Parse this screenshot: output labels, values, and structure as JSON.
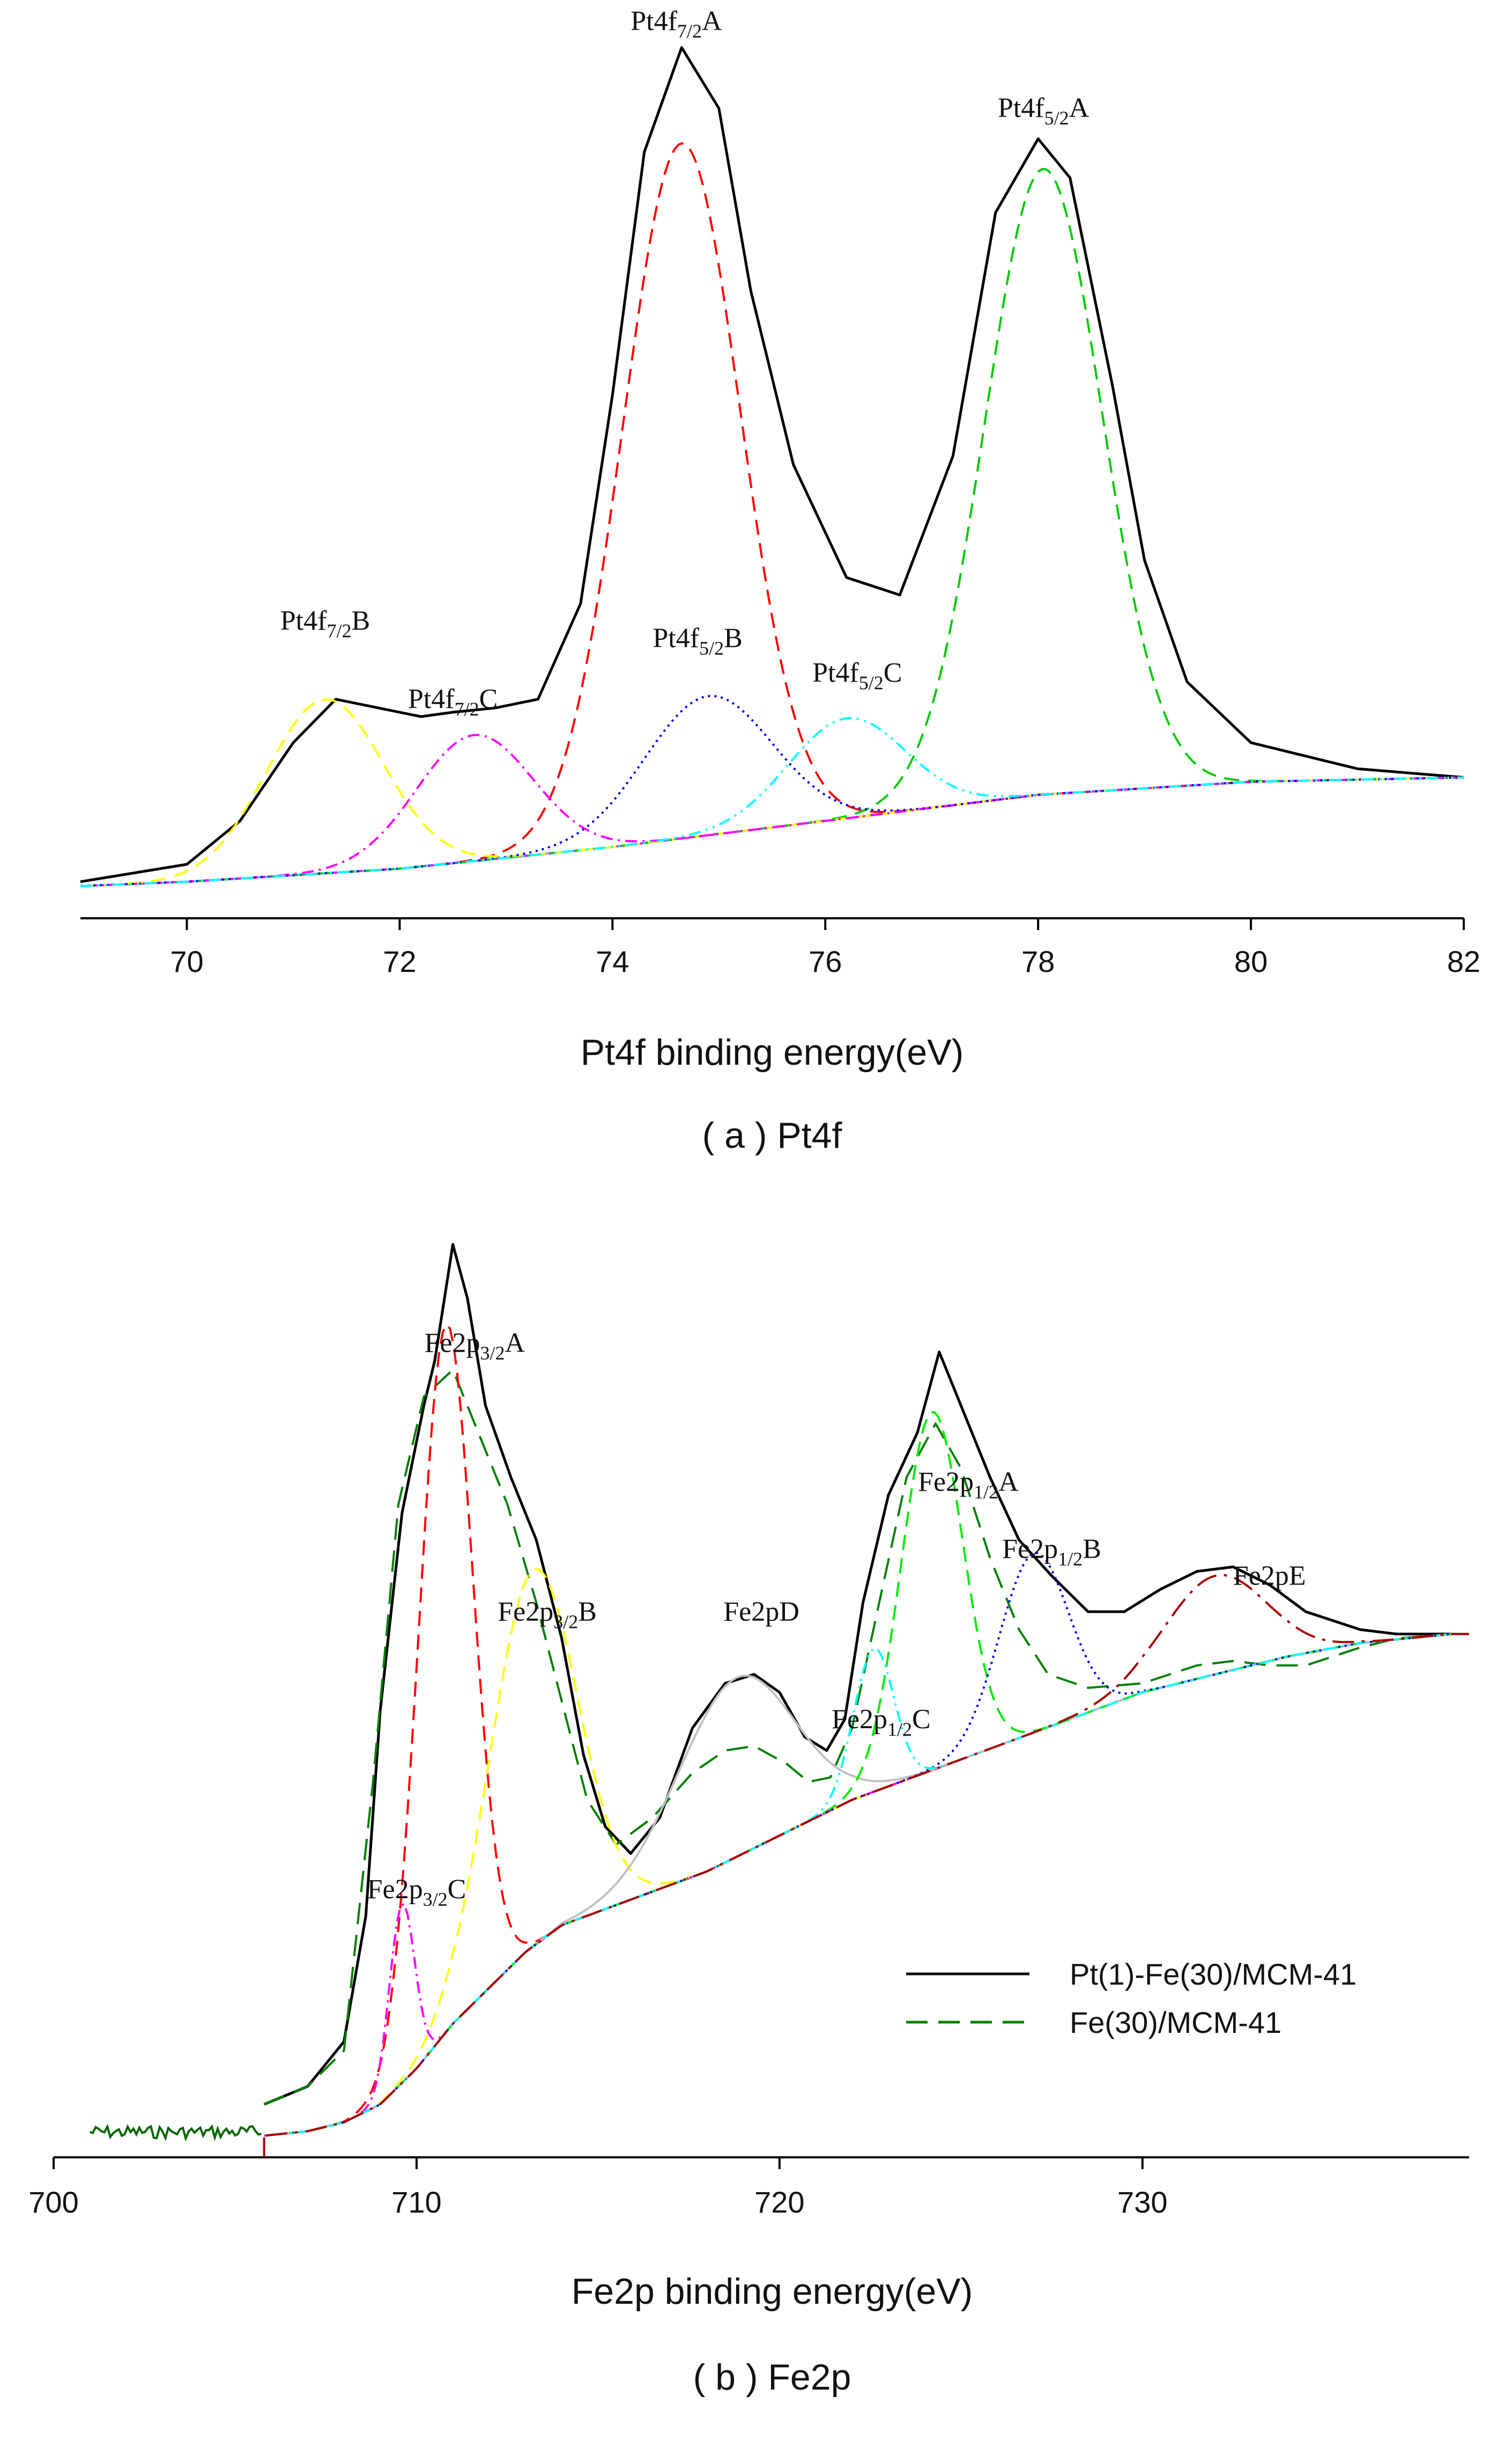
{
  "chart_data": [
    {
      "type": "line",
      "panel": "a",
      "caption": "( a ) Pt4f",
      "xlabel": "Pt4f binding energy(eV)",
      "ylabel": "",
      "xlim": [
        69,
        82
      ],
      "ylim": [
        0,
        100
      ],
      "xticks": [
        70,
        72,
        74,
        76,
        78,
        80,
        82
      ],
      "grid": false,
      "baseline": [
        [
          69,
          0.5
        ],
        [
          70,
          1
        ],
        [
          72,
          2.5
        ],
        [
          74,
          5
        ],
        [
          76,
          8
        ],
        [
          78,
          11
        ],
        [
          80,
          12.5
        ],
        [
          82,
          13
        ]
      ],
      "series": [
        {
          "name": "envelope",
          "color": "#000000",
          "dash": "",
          "points": [
            [
              69,
              1
            ],
            [
              70,
              3
            ],
            [
              70.5,
              8
            ],
            [
              71,
              17
            ],
            [
              71.4,
              22
            ],
            [
              71.8,
              21
            ],
            [
              72.2,
              20
            ],
            [
              72.5,
              20.5
            ],
            [
              72.9,
              21
            ],
            [
              73.3,
              22
            ],
            [
              73.7,
              33
            ],
            [
              74,
              57
            ],
            [
              74.3,
              85
            ],
            [
              74.65,
              97
            ],
            [
              75,
              90
            ],
            [
              75.3,
              69
            ],
            [
              75.7,
              49
            ],
            [
              76.2,
              36
            ],
            [
              76.7,
              34
            ],
            [
              77.2,
              50
            ],
            [
              77.6,
              78
            ],
            [
              78,
              86.5
            ],
            [
              78.3,
              82
            ],
            [
              78.7,
              58
            ],
            [
              79,
              38
            ],
            [
              79.4,
              24
            ],
            [
              80,
              17
            ],
            [
              81,
              14
            ],
            [
              82,
              13
            ]
          ]
        },
        {
          "name": "Pt4f7/2A",
          "color": "#ff0000",
          "dash": "28,16",
          "center": 74.65,
          "height": 80,
          "width": 0.55
        },
        {
          "name": "Pt4f5/2A",
          "color": "#00cc00",
          "dash": "28,16",
          "center": 78.05,
          "height": 72,
          "width": 0.55
        },
        {
          "name": "Pt4f7/2B",
          "color": "#ffff00",
          "dash": "28,16",
          "center": 71.3,
          "height": 20,
          "width": 0.55
        },
        {
          "name": "Pt4f7/2C",
          "color": "#ff00ff",
          "dash": "22,10,4,10",
          "center": 72.7,
          "height": 14.5,
          "width": 0.55
        },
        {
          "name": "Pt4f5/2B",
          "color": "#0000ff",
          "dash": "4,8",
          "center": 74.9,
          "height": 16,
          "width": 0.6
        },
        {
          "name": "Pt4f5/2C",
          "color": "#00ffff",
          "dash": "22,10,4,10,4,10",
          "center": 76.2,
          "height": 11.5,
          "width": 0.55
        }
      ],
      "annotations": [
        {
          "main": "Pt4f",
          "sub": "7/2",
          "suffix": "A",
          "x": 74.6,
          "y": 99
        },
        {
          "main": "Pt4f",
          "sub": "5/2",
          "suffix": "A",
          "x": 78.05,
          "y": 89
        },
        {
          "main": "Pt4f",
          "sub": "7/2",
          "suffix": "B",
          "x": 71.3,
          "y": 30
        },
        {
          "main": "Pt4f",
          "sub": "7/2",
          "suffix": "C",
          "x": 72.5,
          "y": 21
        },
        {
          "main": "Pt4f",
          "sub": "5/2",
          "suffix": "B",
          "x": 74.8,
          "y": 28
        },
        {
          "main": "Pt4f",
          "sub": "5/2",
          "suffix": "C",
          "x": 76.3,
          "y": 24
        }
      ]
    },
    {
      "type": "line",
      "panel": "b",
      "caption": "( b ) Fe2p",
      "xlabel": "Fe2p binding energy(eV)",
      "ylabel": "",
      "xlim": [
        700,
        739
      ],
      "ylim": [
        0,
        100
      ],
      "xticks": [
        700,
        710,
        720,
        730
      ],
      "grid": false,
      "baseline": [
        [
          705.8,
          0.5
        ],
        [
          707,
          1
        ],
        [
          708,
          2
        ],
        [
          709,
          4
        ],
        [
          710,
          8
        ],
        [
          711,
          13
        ],
        [
          712,
          17
        ],
        [
          713,
          21
        ],
        [
          714,
          24
        ],
        [
          716,
          27
        ],
        [
          718,
          30
        ],
        [
          720,
          34
        ],
        [
          722,
          38
        ],
        [
          724,
          41
        ],
        [
          726,
          44
        ],
        [
          728,
          47
        ],
        [
          730,
          50
        ],
        [
          732,
          52
        ],
        [
          734,
          54
        ],
        [
          736,
          55.5
        ],
        [
          738.5,
          56.5
        ]
      ],
      "series": [
        {
          "name": "Pt(1)-Fe(30)/MCM-41",
          "color": "#000000",
          "dash": "",
          "points": [
            [
              705.8,
              4
            ],
            [
              707,
              6
            ],
            [
              708,
              11
            ],
            [
              708.6,
              25
            ],
            [
              709,
              48
            ],
            [
              709.6,
              70
            ],
            [
              710.2,
              82
            ],
            [
              710.5,
              87
            ],
            [
              711,
              100
            ],
            [
              711.4,
              94
            ],
            [
              711.9,
              82
            ],
            [
              712.6,
              74
            ],
            [
              713.3,
              67
            ],
            [
              714,
              56
            ],
            [
              714.6,
              43
            ],
            [
              715.2,
              35
            ],
            [
              715.9,
              32
            ],
            [
              716.7,
              36
            ],
            [
              717.6,
              46
            ],
            [
              718.5,
              51
            ],
            [
              719.3,
              52
            ],
            [
              720,
              50
            ],
            [
              720.7,
              45
            ],
            [
              721.3,
              43.5
            ],
            [
              721.8,
              47
            ],
            [
              722.3,
              60
            ],
            [
              723,
              72
            ],
            [
              723.8,
              79
            ],
            [
              724.4,
              88
            ],
            [
              725,
              82
            ],
            [
              725.8,
              74
            ],
            [
              726.6,
              67
            ],
            [
              727.5,
              63
            ],
            [
              728.5,
              59
            ],
            [
              729.5,
              59
            ],
            [
              730.5,
              61.5
            ],
            [
              731.5,
              63.5
            ],
            [
              732.5,
              64
            ],
            [
              733.5,
              62
            ],
            [
              734.5,
              59
            ],
            [
              736,
              57
            ],
            [
              737,
              56.5
            ],
            [
              738.5,
              56.5
            ]
          ]
        },
        {
          "name": "Fe(30)/MCM-41",
          "color": "#008000",
          "dash": "40,20",
          "points": [
            [
              705.8,
              4
            ],
            [
              707,
              6
            ],
            [
              708,
              10
            ],
            [
              708.8,
              40
            ],
            [
              709.5,
              71
            ],
            [
              710.2,
              83
            ],
            [
              711,
              86
            ],
            [
              711.6,
              80
            ],
            [
              712.5,
              71
            ],
            [
              713.3,
              60
            ],
            [
              714,
              49
            ],
            [
              714.7,
              38
            ],
            [
              715.5,
              33
            ],
            [
              716.5,
              36
            ],
            [
              717.6,
              41
            ],
            [
              718.5,
              43.5
            ],
            [
              719.3,
              44
            ],
            [
              720.2,
              42
            ],
            [
              720.8,
              40
            ],
            [
              721.4,
              40.5
            ],
            [
              722,
              46
            ],
            [
              722.8,
              61
            ],
            [
              723.5,
              74
            ],
            [
              724.3,
              80
            ],
            [
              725,
              75
            ],
            [
              725.8,
              65
            ],
            [
              726.6,
              57
            ],
            [
              727.4,
              52
            ],
            [
              728.5,
              50.5
            ],
            [
              730,
              51
            ],
            [
              731.5,
              53
            ],
            [
              732.5,
              53.5
            ],
            [
              733.5,
              53
            ],
            [
              734.5,
              53
            ],
            [
              736,
              55
            ],
            [
              737,
              56
            ],
            [
              738.5,
              56.5
            ]
          ]
        },
        {
          "name": "Fe2p3/2A",
          "color": "#ff0000",
          "dash": "28,16",
          "center": 710.8,
          "height": 79,
          "width": 0.75
        },
        {
          "name": "Fe2p3/2B",
          "color": "#ffff00",
          "dash": "28,16",
          "center": 713.2,
          "height": 42,
          "width": 1.2
        },
        {
          "name": "Fe2p3/2C",
          "color": "#ff00ff",
          "dash": "22,10,4,10",
          "center": 709.6,
          "height": 20,
          "width": 0.35
        },
        {
          "name": "Fe2pD",
          "color": "#c0c0c0",
          "dash": "",
          "center": 718.8,
          "height": 20,
          "width": 1.6
        },
        {
          "name": "Fe2p1/2A",
          "color": "#00ee00",
          "dash": "28,16",
          "center": 724.2,
          "height": 40,
          "width": 0.85
        },
        {
          "name": "Fe2p1/2B",
          "color": "#0000ff",
          "dash": "4,8",
          "center": 727,
          "height": 20,
          "width": 0.95
        },
        {
          "name": "Fe2p1/2C",
          "color": "#00ffff",
          "dash": "22,10,4,10,4,10",
          "center": 722.6,
          "height": 16,
          "width": 0.55
        },
        {
          "name": "Fe2pE",
          "color": "#aa0000",
          "dash": "40,14,6,14",
          "center": 732,
          "height": 11,
          "width": 1.4
        }
      ],
      "annotations": [
        {
          "main": "Fe2p",
          "sub": "3/2",
          "suffix": "A",
          "x": 711.6,
          "y": 88
        },
        {
          "main": "Fe2p",
          "sub": "3/2",
          "suffix": "B",
          "x": 713.6,
          "y": 58
        },
        {
          "main": "Fe2p",
          "sub": "3/2",
          "suffix": "C",
          "x": 710.0,
          "y": 27
        },
        {
          "main": "Fe2p",
          "sub": "",
          "suffix": "D",
          "x": 719.5,
          "y": 58
        },
        {
          "main": "Fe2p",
          "sub": "1/2",
          "suffix": "A",
          "x": 725.2,
          "y": 72.5
        },
        {
          "main": "Fe2p",
          "sub": "1/2",
          "suffix": "B",
          "x": 727.5,
          "y": 65
        },
        {
          "main": "Fe2p",
          "sub": "1/2",
          "suffix": "C",
          "x": 722.8,
          "y": 46
        },
        {
          "main": "Fe2p",
          "sub": "",
          "suffix": "E",
          "x": 733.5,
          "y": 62
        }
      ],
      "legend": {
        "placement": "right",
        "entries": [
          {
            "label": "Pt(1)-Fe(30)/MCM-41",
            "color": "#000000",
            "dash": ""
          },
          {
            "label": "Fe(30)/MCM-41",
            "color": "#008000",
            "dash": "40,20"
          }
        ]
      }
    }
  ]
}
